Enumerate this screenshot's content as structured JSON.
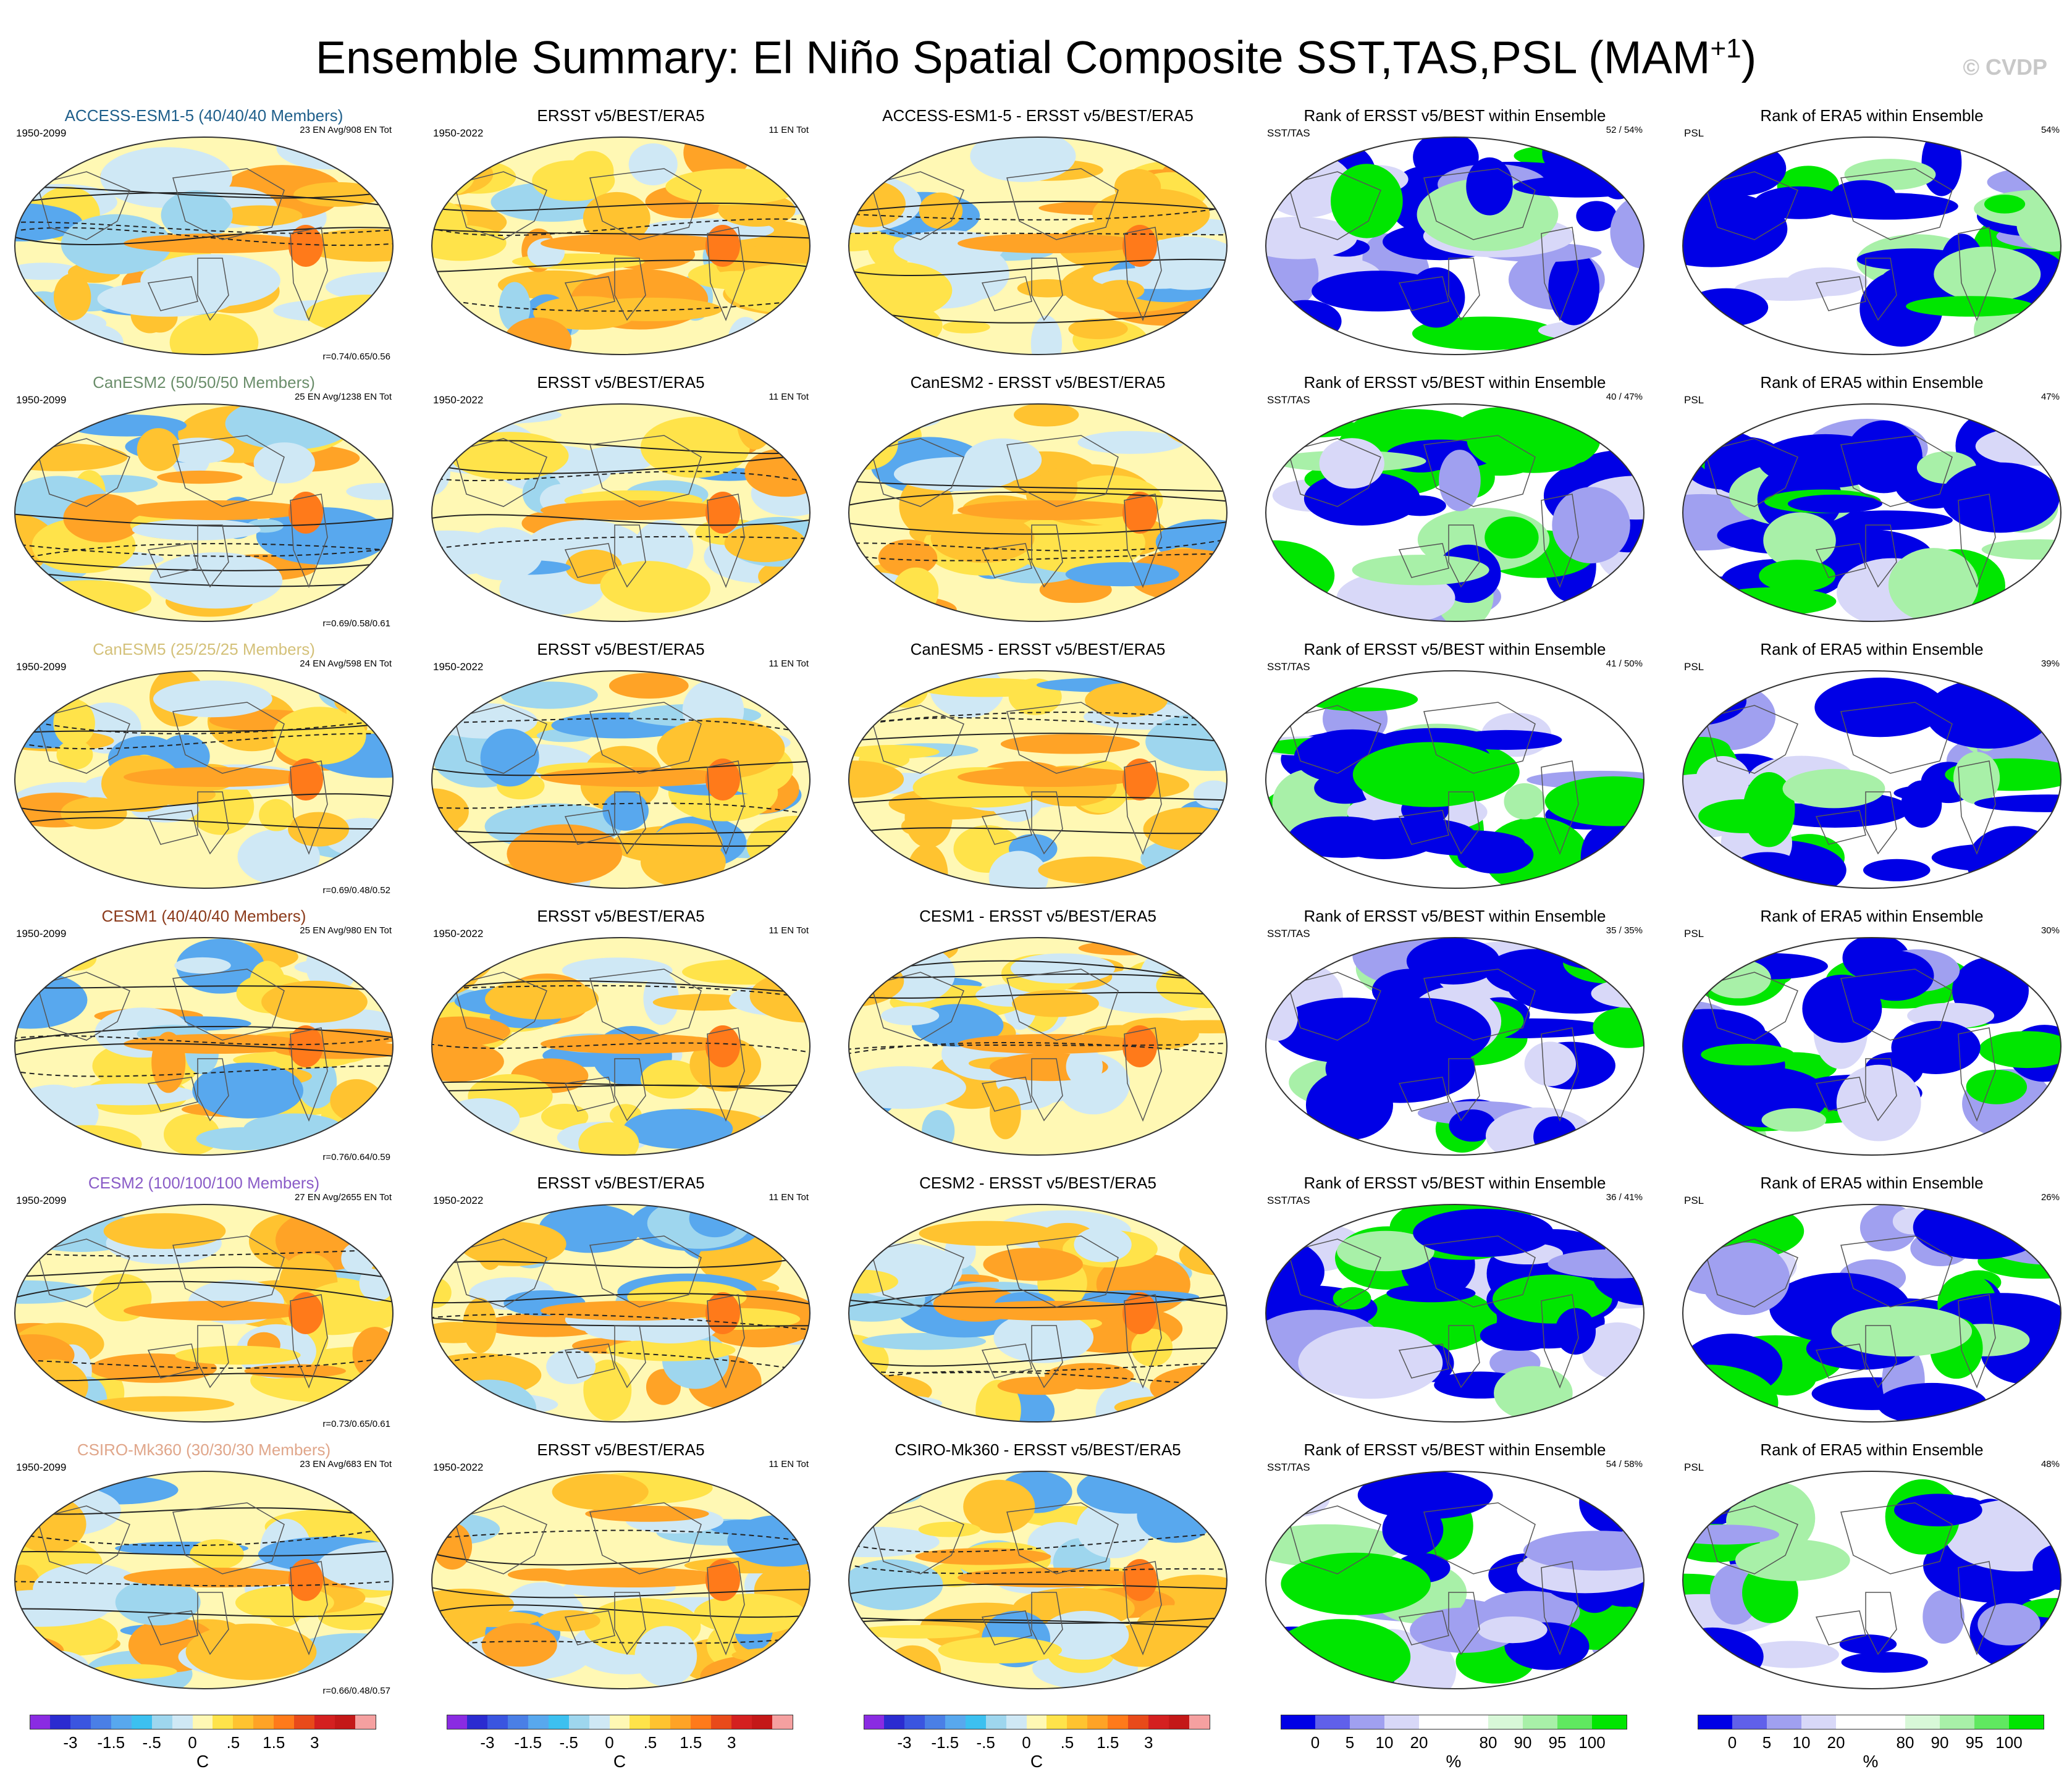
{
  "title": {
    "main": "Ensemble Summary: El Niño Spatial Composite SST,TAS,PSL (MAM",
    "sup": "+1",
    "close": ")"
  },
  "credit": "© CVDP",
  "rows": [
    {
      "model": "ACCESS-ESM1-5 (40/40/40 Members)",
      "model_color": "#1f5f8b",
      "period": "1950-2099",
      "stats": "23 EN Avg/908 EN Tot",
      "corr": "r=0.74/0.65/0.56",
      "obs_period": "1950-2022",
      "obs_title": "ERSST v5/BEST/ERA5",
      "obs_stats": "11 EN Tot",
      "diff_title": "ACCESS-ESM1-5 - ERSST v5/BEST/ERA5",
      "rank1_title": "Rank of ERSST v5/BEST within Ensemble",
      "rank1_label": "SST/TAS",
      "rank1_pct": "52 / 54%",
      "rank2_title": "Rank of ERA5 within Ensemble",
      "rank2_label": "PSL",
      "rank2_pct": "54%"
    },
    {
      "model": "CanESM2 (50/50/50 Members)",
      "model_color": "#6b8e6b",
      "period": "1950-2099",
      "stats": "25 EN Avg/1238 EN Tot",
      "corr": "r=0.69/0.58/0.61",
      "obs_period": "1950-2022",
      "obs_title": "ERSST v5/BEST/ERA5",
      "obs_stats": "11 EN Tot",
      "diff_title": "CanESM2 - ERSST v5/BEST/ERA5",
      "rank1_title": "Rank of ERSST v5/BEST within Ensemble",
      "rank1_label": "SST/TAS",
      "rank1_pct": "40 / 47%",
      "rank2_title": "Rank of ERA5 within Ensemble",
      "rank2_label": "PSL",
      "rank2_pct": "47%"
    },
    {
      "model": "CanESM5 (25/25/25 Members)",
      "model_color": "#d4c17a",
      "period": "1950-2099",
      "stats": "24 EN Avg/598 EN Tot",
      "corr": "r=0.69/0.48/0.52",
      "obs_period": "1950-2022",
      "obs_title": "ERSST v5/BEST/ERA5",
      "obs_stats": "11 EN Tot",
      "diff_title": "CanESM5 - ERSST v5/BEST/ERA5",
      "rank1_title": "Rank of ERSST v5/BEST within Ensemble",
      "rank1_label": "SST/TAS",
      "rank1_pct": "41 / 50%",
      "rank2_title": "Rank of ERA5 within Ensemble",
      "rank2_label": "PSL",
      "rank2_pct": "39%"
    },
    {
      "model": "CESM1 (40/40/40 Members)",
      "model_color": "#8b3a1a",
      "period": "1950-2099",
      "stats": "25 EN Avg/980 EN Tot",
      "corr": "r=0.76/0.64/0.59",
      "obs_period": "1950-2022",
      "obs_title": "ERSST v5/BEST/ERA5",
      "obs_stats": "11 EN Tot",
      "diff_title": "CESM1 - ERSST v5/BEST/ERA5",
      "rank1_title": "Rank of ERSST v5/BEST within Ensemble",
      "rank1_label": "SST/TAS",
      "rank1_pct": "35 / 35%",
      "rank2_title": "Rank of ERA5 within Ensemble",
      "rank2_label": "PSL",
      "rank2_pct": "30%"
    },
    {
      "model": "CESM2 (100/100/100 Members)",
      "model_color": "#8a5cc7",
      "period": "1950-2099",
      "stats": "27 EN Avg/2655 EN Tot",
      "corr": "r=0.73/0.65/0.61",
      "obs_period": "1950-2022",
      "obs_title": "ERSST v5/BEST/ERA5",
      "obs_stats": "11 EN Tot",
      "diff_title": "CESM2 - ERSST v5/BEST/ERA5",
      "rank1_title": "Rank of ERSST v5/BEST within Ensemble",
      "rank1_label": "SST/TAS",
      "rank1_pct": "36 / 41%",
      "rank2_title": "Rank of ERA5 within Ensemble",
      "rank2_label": "PSL",
      "rank2_pct": "26%"
    },
    {
      "model": "CSIRO-Mk360 (30/30/30 Members)",
      "model_color": "#e0a68a",
      "period": "1950-2099",
      "stats": "23 EN Avg/683 EN Tot",
      "corr": "r=0.66/0.48/0.57",
      "obs_period": "1950-2022",
      "obs_title": "ERSST v5/BEST/ERA5",
      "obs_stats": "11 EN Tot",
      "diff_title": "CSIRO-Mk360 - ERSST v5/BEST/ERA5",
      "rank1_title": "Rank of ERSST v5/BEST within Ensemble",
      "rank1_label": "SST/TAS",
      "rank1_pct": "54 / 58%",
      "rank2_title": "Rank of ERA5 within Ensemble",
      "rank2_label": "PSL",
      "rank2_pct": "48%"
    }
  ],
  "temp_colorbar": {
    "unit": "C",
    "colors": [
      "#8a2be2",
      "#2b2bd0",
      "#3a55e0",
      "#4a7fe6",
      "#58a8ee",
      "#3cc0f0",
      "#9ed6ee",
      "#cfe8f5",
      "#fff8b4",
      "#ffe34a",
      "#ffc330",
      "#ffa326",
      "#ff7a1a",
      "#e84a1a",
      "#d42020",
      "#c41818",
      "#f5a0a0"
    ],
    "ticks": [
      "-3",
      "-1.5",
      "-.5",
      "0",
      ".5",
      "1.5",
      "3"
    ],
    "tick_bounds": [
      2,
      4,
      6,
      8,
      10,
      12,
      14
    ]
  },
  "rank_colorbar": {
    "unit": "%",
    "colors": [
      "#0000e6",
      "#6060ea",
      "#a0a0f0",
      "#d8d8f8",
      "#ffffff",
      "#ffffff",
      "#d8f8d8",
      "#a8f0a8",
      "#60e860",
      "#00e600"
    ],
    "ticks": [
      "0",
      "5",
      "10",
      "20",
      "80",
      "90",
      "95",
      "100"
    ],
    "tick_bounds": [
      1,
      2,
      3,
      4,
      6,
      7,
      8,
      9
    ]
  }
}
